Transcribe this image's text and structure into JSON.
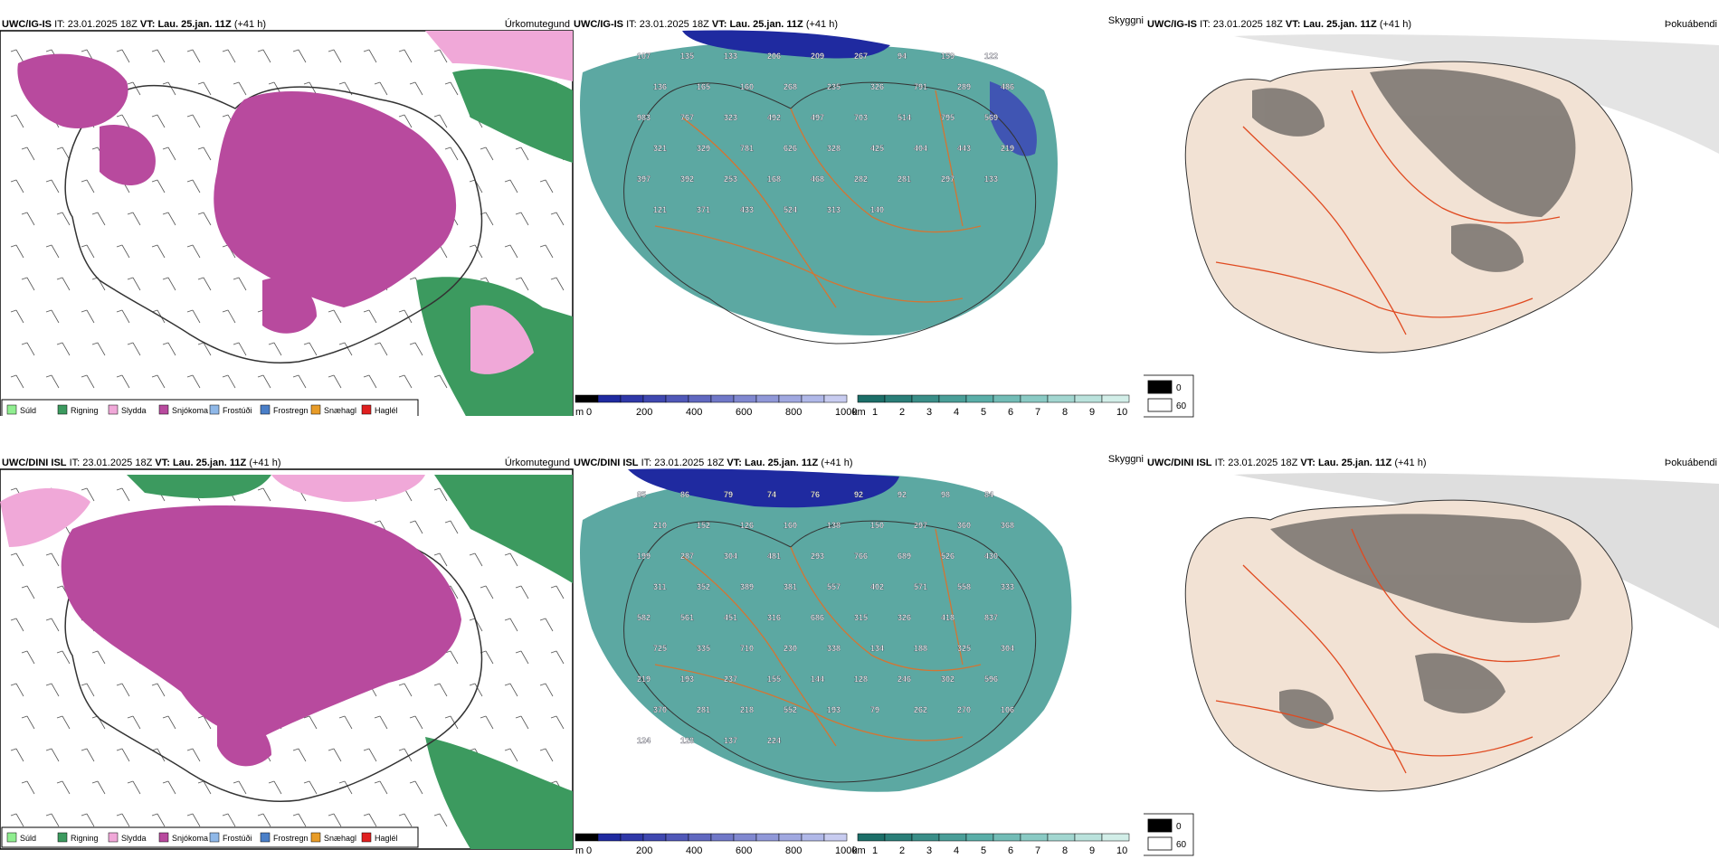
{
  "colors": {
    "suld": "#90ee90",
    "rigning": "#3c9a5f",
    "slydda": "#f0a8d8",
    "snjokoma": "#b84a9e",
    "frostudi": "#8fb8e8",
    "frostregn": "#4a7fc8",
    "snaehagl": "#e89c28",
    "haglel": "#e02020",
    "sea_teal": "#4a9e98",
    "blue_dark": "#1f2aa0",
    "roads": "#e07028",
    "land_beige": "#f2e2d4"
  },
  "rows": [
    {
      "model": "UWC/IG-IS",
      "it_label": "IT:",
      "it_value": "23.01.2025 18Z",
      "vt_label": "VT:",
      "vt_value": "Lau. 25.jan. 11Z",
      "lead": "(+41 h)",
      "numbers": [
        "107",
        "135",
        "133",
        "206",
        "209",
        "267",
        "94",
        "159",
        "122",
        "136",
        "165",
        "160",
        "268",
        "235",
        "326",
        "791",
        "289",
        "486",
        "983",
        "767",
        "323",
        "492",
        "497",
        "703",
        "514",
        "795",
        "569",
        "321",
        "329",
        "781",
        "626",
        "328",
        "425",
        "404",
        "443",
        "219",
        "397",
        "392",
        "253",
        "168",
        "468",
        "282",
        "281",
        "297",
        "133",
        "121",
        "371",
        "433",
        "524",
        "313",
        "140"
      ]
    },
    {
      "model": "UWC/DINI ISL",
      "it_label": "IT:",
      "it_value": "23.01.2025 18Z",
      "vt_label": "VT:",
      "vt_value": "Lau. 25.jan. 11Z",
      "lead": "(+41 h)",
      "numbers": [
        "85",
        "86",
        "79",
        "74",
        "76",
        "92",
        "92",
        "98",
        "84",
        "210",
        "152",
        "126",
        "160",
        "138",
        "150",
        "297",
        "360",
        "368",
        "199",
        "287",
        "304",
        "481",
        "293",
        "766",
        "689",
        "526",
        "430",
        "311",
        "352",
        "389",
        "381",
        "557",
        "402",
        "571",
        "558",
        "333",
        "582",
        "561",
        "451",
        "316",
        "686",
        "315",
        "326",
        "418",
        "837",
        "725",
        "335",
        "710",
        "230",
        "338",
        "134",
        "188",
        "325",
        "304",
        "219",
        "193",
        "237",
        "155",
        "144",
        "128",
        "246",
        "302",
        "596",
        "370",
        "281",
        "218",
        "552",
        "193",
        "79",
        "262",
        "270",
        "106",
        "124",
        "128",
        "137",
        "224"
      ]
    }
  ],
  "panel_titles": {
    "precip_type": "Úrkomutegund",
    "visibility": "Skyggni",
    "cloud": "Þokuábendi"
  },
  "precip_legend": [
    "Súld",
    "Rigning",
    "Slydda",
    "Snjókoma",
    "Frostúði",
    "Frostregn",
    "Snæhagl",
    "Haglél"
  ],
  "ceiling_scale": {
    "unit": "m",
    "ticks": [
      "0",
      "200",
      "400",
      "600",
      "800",
      "1000"
    ]
  },
  "visibility_scale": {
    "unit": "km",
    "ticks": [
      "1",
      "2",
      "3",
      "4",
      "5",
      "6",
      "7",
      "8",
      "9",
      "10"
    ]
  },
  "cloud_legend": [
    "0",
    "60"
  ]
}
